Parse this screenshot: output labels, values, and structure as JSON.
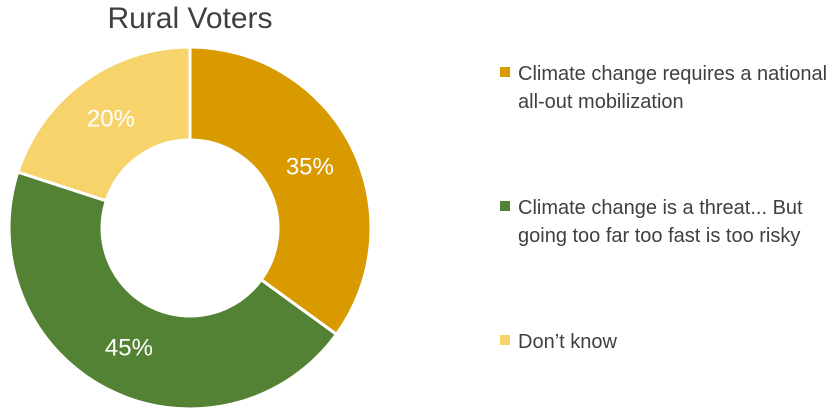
{
  "chart_data": {
    "type": "pie",
    "title": "Rural Voters",
    "donut": true,
    "categories": [
      "Climate change  requires a national all-out mobilization",
      "Climate change is a threat... But going too far too fast is too risky",
      "Don’t know"
    ],
    "values": [
      35,
      45,
      20
    ],
    "labels": [
      "35%",
      "45%",
      "20%"
    ],
    "colors": [
      "#D99A00",
      "#548235",
      "#F7D46B"
    ],
    "legend_position": "right"
  }
}
